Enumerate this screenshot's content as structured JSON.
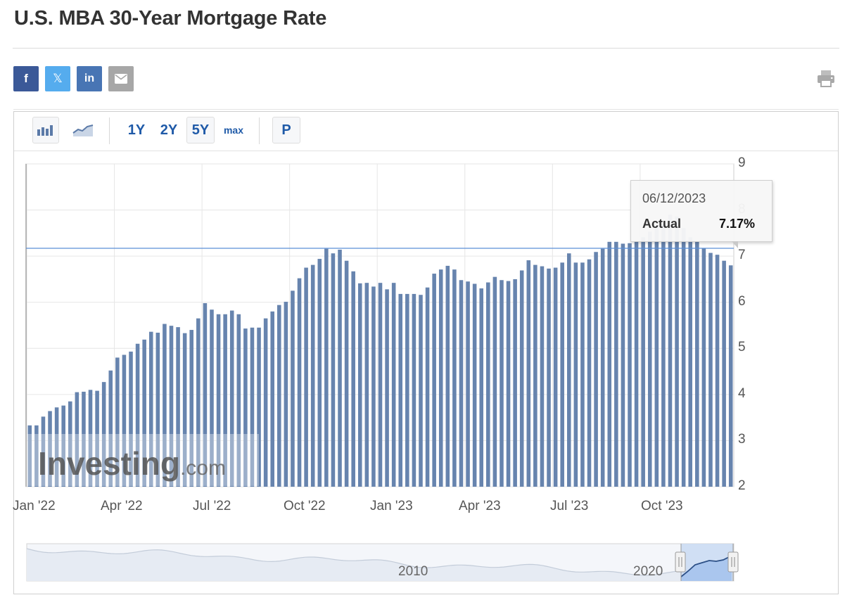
{
  "page": {
    "title": "U.S. MBA 30-Year Mortgage Rate"
  },
  "share": {
    "facebook_glyph": "f",
    "twitter_glyph": "𝕏",
    "linkedin_glyph": "in",
    "email_icon": "envelope-icon",
    "print_icon": "printer-icon"
  },
  "toolbar": {
    "bar_icon": "bar-chart-icon",
    "area_icon": "area-chart-icon",
    "ranges": [
      "1Y",
      "2Y",
      "5Y",
      "max"
    ],
    "selected_range": "5Y",
    "p_label": "P"
  },
  "tooltip": {
    "date": "06/12/2023",
    "series": "Actual",
    "value": "7.17%"
  },
  "navigator": {
    "labels": [
      "2010",
      "2020"
    ]
  },
  "watermark": "Investing.com",
  "colors": {
    "bar": "#6784ae",
    "bar_light": "#a3b4cf",
    "crosshair": "#5b8fd6",
    "link": "#1f5aa8"
  },
  "chart_data": {
    "type": "bar",
    "title": "U.S. MBA 30-Year Mortgage Rate",
    "xlabel": "",
    "ylabel": "",
    "ylim": [
      2,
      9
    ],
    "y_ticks": [
      2,
      3,
      4,
      5,
      6,
      7,
      8,
      9
    ],
    "y_axis_position": "right",
    "x_ticks": [
      "Jan '22",
      "Apr '22",
      "Jul '22",
      "Oct '22",
      "Jan '23",
      "Apr '23",
      "Jul '23",
      "Oct '23"
    ],
    "grid": true,
    "frequency": "weekly",
    "x_start": "Jan '22",
    "values": [
      3.33,
      3.33,
      3.52,
      3.64,
      3.72,
      3.76,
      3.85,
      4.05,
      4.06,
      4.1,
      4.08,
      4.27,
      4.52,
      4.8,
      4.86,
      4.93,
      5.1,
      5.19,
      5.36,
      5.34,
      5.53,
      5.49,
      5.46,
      5.33,
      5.4,
      5.65,
      5.98,
      5.84,
      5.74,
      5.74,
      5.82,
      5.74,
      5.43,
      5.45,
      5.45,
      5.65,
      5.8,
      5.94,
      6.01,
      6.25,
      6.52,
      6.75,
      6.81,
      6.94,
      7.16,
      7.06,
      7.14,
      6.9,
      6.67,
      6.41,
      6.42,
      6.34,
      6.42,
      6.28,
      6.42,
      6.18,
      6.18,
      6.18,
      6.16,
      6.32,
      6.62,
      6.71,
      6.79,
      6.71,
      6.48,
      6.45,
      6.4,
      6.3,
      6.43,
      6.55,
      6.48,
      6.46,
      6.5,
      6.69,
      6.91,
      6.81,
      6.78,
      6.73,
      6.75,
      6.86,
      7.06,
      6.86,
      6.86,
      6.93,
      7.09,
      7.16,
      7.31,
      7.31,
      7.27,
      7.28,
      7.31,
      7.41,
      7.53,
      7.67,
      7.7,
      7.9,
      7.86,
      7.61,
      7.41,
      7.32,
      7.17,
      7.07,
      7.03,
      6.9,
      6.8
    ],
    "crosshair_value": 7.17,
    "tooltip": {
      "date": "06/12/2023",
      "series": "Actual",
      "value": 7.17
    }
  }
}
